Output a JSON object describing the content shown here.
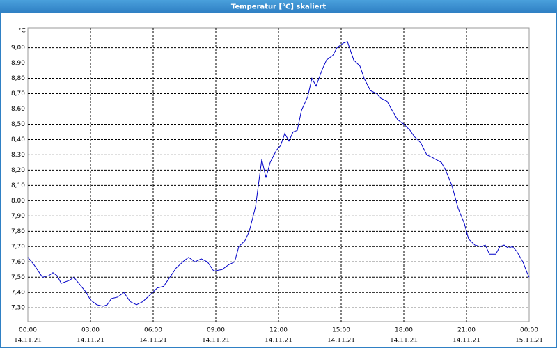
{
  "window_title": "Temperatur [°C] skaliert",
  "chart_data": {
    "type": "line",
    "y_unit": "°C",
    "x": [
      0,
      0.3,
      0.7,
      1.0,
      1.2,
      1.4,
      1.6,
      2.0,
      2.2,
      2.5,
      2.8,
      3.0,
      3.3,
      3.6,
      3.8,
      4.0,
      4.3,
      4.6,
      4.9,
      5.2,
      5.5,
      5.9,
      6.2,
      6.5,
      6.8,
      7.1,
      7.5,
      7.7,
      8.0,
      8.3,
      8.6,
      8.9,
      9.3,
      9.6,
      9.9,
      10.1,
      10.4,
      10.6,
      10.9,
      11.2,
      11.4,
      11.6,
      11.9,
      12.1,
      12.3,
      12.5,
      12.7,
      12.9,
      13.1,
      13.4,
      13.6,
      13.8,
      14.1,
      14.3,
      14.6,
      14.8,
      15.1,
      15.3,
      15.6,
      15.9,
      16.1,
      16.4,
      16.7,
      16.9,
      17.2,
      17.4,
      17.7,
      18.0,
      18.3,
      18.5,
      18.8,
      19.1,
      19.4,
      19.8,
      20.0,
      20.3,
      20.6,
      20.9,
      21.1,
      21.4,
      21.7,
      21.9,
      22.1,
      22.4,
      22.6,
      22.8,
      23.0,
      23.2,
      23.4,
      23.7,
      23.9,
      24.0
    ],
    "series": [
      {
        "name": "Temperatur",
        "color": "#0000c8",
        "values": [
          7.63,
          7.58,
          7.5,
          7.51,
          7.53,
          7.51,
          7.46,
          7.48,
          7.5,
          7.45,
          7.4,
          7.35,
          7.32,
          7.31,
          7.32,
          7.36,
          7.37,
          7.4,
          7.34,
          7.32,
          7.34,
          7.39,
          7.43,
          7.44,
          7.5,
          7.56,
          7.61,
          7.63,
          7.6,
          7.62,
          7.6,
          7.54,
          7.55,
          7.58,
          7.6,
          7.7,
          7.74,
          7.8,
          7.96,
          8.27,
          8.15,
          8.25,
          8.33,
          8.36,
          8.44,
          8.39,
          8.45,
          8.46,
          8.59,
          8.68,
          8.8,
          8.75,
          8.86,
          8.92,
          8.95,
          9.0,
          9.03,
          9.04,
          8.92,
          8.88,
          8.8,
          8.72,
          8.7,
          8.67,
          8.65,
          8.6,
          8.53,
          8.5,
          8.46,
          8.42,
          8.38,
          8.3,
          8.28,
          8.25,
          8.2,
          8.1,
          7.95,
          7.85,
          7.75,
          7.71,
          7.7,
          7.71,
          7.65,
          7.65,
          7.7,
          7.71,
          7.69,
          7.7,
          7.67,
          7.6,
          7.53,
          7.5
        ]
      }
    ],
    "xlim": [
      0,
      24
    ],
    "ylim": [
      7.21,
      9.13
    ],
    "xticks": [
      {
        "value": 0,
        "label": "00:00"
      },
      {
        "value": 3,
        "label": "03:00"
      },
      {
        "value": 6,
        "label": "06:00"
      },
      {
        "value": 9,
        "label": "09:00"
      },
      {
        "value": 12,
        "label": "12:00"
      },
      {
        "value": 15,
        "label": "15:00"
      },
      {
        "value": 18,
        "label": "18:00"
      },
      {
        "value": 21,
        "label": "21:00"
      },
      {
        "value": 24,
        "label": "00:00"
      }
    ],
    "xtick_dates": [
      "14.11.21",
      "14.11.21",
      "14.11.21",
      "14.11.21",
      "14.11.21",
      "14.11.21",
      "14.11.21",
      "14.11.21",
      "15.11.21"
    ],
    "yticks": [
      {
        "value": 7.3,
        "label": "7,30"
      },
      {
        "value": 7.4,
        "label": "7,40"
      },
      {
        "value": 7.5,
        "label": "7,50"
      },
      {
        "value": 7.6,
        "label": "7,60"
      },
      {
        "value": 7.7,
        "label": "7,70"
      },
      {
        "value": 7.8,
        "label": "7,80"
      },
      {
        "value": 7.9,
        "label": "7,90"
      },
      {
        "value": 8.0,
        "label": "8,00"
      },
      {
        "value": 8.1,
        "label": "8,10"
      },
      {
        "value": 8.2,
        "label": "8,20"
      },
      {
        "value": 8.3,
        "label": "8,30"
      },
      {
        "value": 8.4,
        "label": "8,40"
      },
      {
        "value": 8.5,
        "label": "8,50"
      },
      {
        "value": 8.6,
        "label": "8,60"
      },
      {
        "value": 8.7,
        "label": "8,70"
      },
      {
        "value": 8.8,
        "label": "8,80"
      },
      {
        "value": 8.9,
        "label": "8,90"
      },
      {
        "value": 9.0,
        "label": "9,00"
      }
    ],
    "grid": true
  }
}
